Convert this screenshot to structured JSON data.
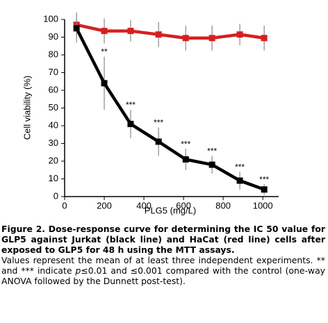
{
  "chart_data": {
    "type": "line",
    "y_label": "Cell viability (%)",
    "x_label": "PLG5 (mg/L)",
    "x": [
      60,
      200,
      333,
      474,
      611,
      744,
      884,
      1007
    ],
    "series": [
      {
        "color": "#d62020",
        "values": [
          97,
          93.5,
          93.5,
          91.5,
          89.5,
          89.5,
          91.5,
          89.5
        ],
        "errors": [
          7,
          7,
          6,
          7,
          7,
          7,
          6,
          7
        ]
      },
      {
        "color": "#000000",
        "values": [
          95,
          64,
          41,
          31,
          21,
          18,
          9,
          4
        ],
        "errors": [
          8,
          15,
          8,
          8,
          6,
          5,
          5,
          3
        ],
        "significance": [
          null,
          "**",
          "***",
          "***",
          "***",
          "***",
          "***",
          "***"
        ]
      }
    ],
    "xlim": [
      0,
      1080
    ],
    "ylim": [
      0,
      100
    ],
    "xticks": [
      0,
      200,
      400,
      600,
      800,
      1000
    ],
    "yticks": [
      0,
      10,
      20,
      30,
      40,
      50,
      60,
      70,
      80,
      90,
      100
    ]
  },
  "caption": {
    "title": "Figure 2. Dose-response curve for determining the IC 50 value for GLP5 against Jurkat (black line) and HaCat (red line) cells after exposed to GLP5 for 48 h using the MTT assays.",
    "body": [
      "Values represent the mean of at least three independent experiments. ** and *** indicate ",
      "p",
      "≤0.01 and ≤0.001 compared with the control (one-way ANOVA followed by the Dunnett post-test)."
    ]
  }
}
